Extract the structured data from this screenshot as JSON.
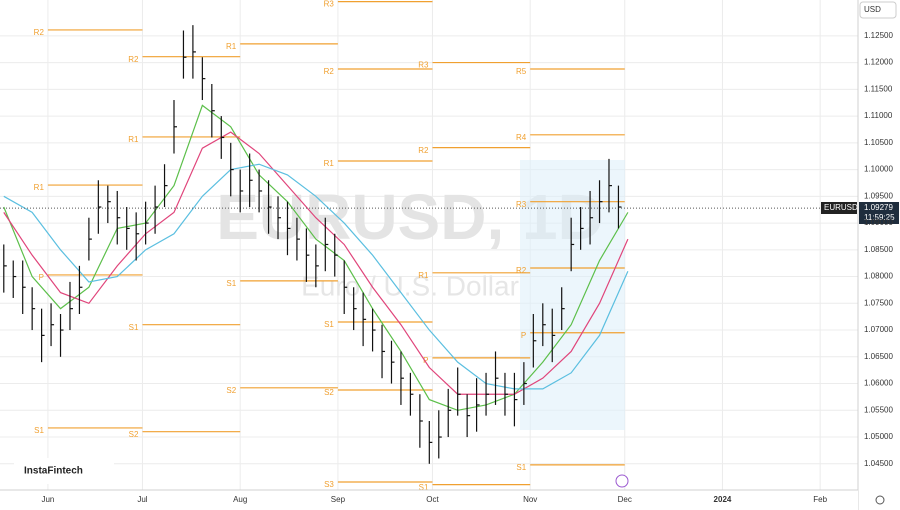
{
  "chart_data": {
    "type": "ohlc",
    "symbol": "EURUSD",
    "watermark": "EURUSD, 1D",
    "watermark_subtitle": "Euro / U.S. Dollar",
    "currency": "USD",
    "logo": "InstaFintech",
    "last_price": 1.09279,
    "countdown": "11:59:25",
    "bar_color": "#111111",
    "grid": true,
    "xlim": [
      -15.2,
      257
    ],
    "ylim": [
      1.0401,
      1.1317
    ],
    "xticks": [
      {
        "value": 0,
        "label": "Jun"
      },
      {
        "value": 30,
        "label": "Jul"
      },
      {
        "value": 61,
        "label": "Aug"
      },
      {
        "value": 92,
        "label": "Sep"
      },
      {
        "value": 122,
        "label": "Oct"
      },
      {
        "value": 153,
        "label": "Nov"
      },
      {
        "value": 183,
        "label": "Dec"
      },
      {
        "value": 214,
        "label": "2024"
      },
      {
        "value": 245,
        "label": "Feb"
      }
    ],
    "yticks": [
      {
        "value": 1.045,
        "label": "1.04500"
      },
      {
        "value": 1.05,
        "label": "1.05000"
      },
      {
        "value": 1.055,
        "label": "1.05500"
      },
      {
        "value": 1.06,
        "label": "1.06000"
      },
      {
        "value": 1.065,
        "label": "1.06500"
      },
      {
        "value": 1.07,
        "label": "1.07000"
      },
      {
        "value": 1.075,
        "label": "1.07500"
      },
      {
        "value": 1.08,
        "label": "1.08000"
      },
      {
        "value": 1.085,
        "label": "1.08500"
      },
      {
        "value": 1.09,
        "label": "1.09000"
      },
      {
        "value": 1.095,
        "label": "1.09500"
      },
      {
        "value": 1.1,
        "label": "1.10000"
      },
      {
        "value": 1.105,
        "label": "1.10500"
      },
      {
        "value": 1.11,
        "label": "1.11000"
      },
      {
        "value": 1.115,
        "label": "1.11500"
      },
      {
        "value": 1.12,
        "label": "1.12000"
      },
      {
        "value": 1.125,
        "label": "1.12500"
      }
    ],
    "x": [
      -14,
      -11,
      -8,
      -5,
      -2,
      1,
      4,
      7,
      10,
      13,
      16,
      19,
      22,
      25,
      28,
      31,
      34,
      37,
      40,
      43,
      46,
      49,
      52,
      55,
      58,
      61,
      64,
      67,
      70,
      73,
      76,
      79,
      82,
      85,
      88,
      91,
      94,
      97,
      100,
      103,
      106,
      109,
      112,
      115,
      118,
      121,
      124,
      127,
      130,
      133,
      136,
      139,
      142,
      145,
      148,
      151,
      154,
      157,
      160,
      163,
      166,
      169,
      172,
      175,
      178,
      181
    ],
    "high": [
      1.086,
      1.083,
      1.083,
      1.078,
      1.074,
      1.075,
      1.073,
      1.079,
      1.082,
      1.091,
      1.098,
      1.097,
      1.096,
      1.093,
      1.092,
      1.094,
      1.097,
      1.101,
      1.113,
      1.126,
      1.127,
      1.121,
      1.116,
      1.11,
      1.105,
      1.1,
      1.103,
      1.1,
      1.098,
      1.095,
      1.094,
      1.091,
      1.089,
      1.086,
      1.091,
      1.088,
      1.083,
      1.078,
      1.077,
      1.074,
      1.071,
      1.068,
      1.066,
      1.062,
      1.058,
      1.053,
      1.055,
      1.059,
      1.063,
      1.058,
      1.061,
      1.062,
      1.066,
      1.062,
      1.062,
      1.064,
      1.073,
      1.075,
      1.074,
      1.078,
      1.091,
      1.093,
      1.096,
      1.098,
      1.102,
      1.097
    ],
    "low": [
      1.077,
      1.076,
      1.073,
      1.07,
      1.064,
      1.067,
      1.065,
      1.07,
      1.073,
      1.083,
      1.088,
      1.09,
      1.086,
      1.085,
      1.083,
      1.086,
      1.088,
      1.093,
      1.103,
      1.117,
      1.117,
      1.113,
      1.106,
      1.102,
      1.095,
      1.092,
      1.093,
      1.092,
      1.088,
      1.087,
      1.084,
      1.083,
      1.079,
      1.078,
      1.081,
      1.08,
      1.073,
      1.07,
      1.067,
      1.066,
      1.061,
      1.06,
      1.056,
      1.054,
      1.048,
      1.045,
      1.046,
      1.05,
      1.054,
      1.05,
      1.051,
      1.054,
      1.056,
      1.054,
      1.052,
      1.056,
      1.063,
      1.067,
      1.064,
      1.07,
      1.081,
      1.085,
      1.086,
      1.09,
      1.092,
      1.089
    ],
    "close": [
      1.082,
      1.08,
      1.078,
      1.074,
      1.069,
      1.071,
      1.07,
      1.074,
      1.078,
      1.087,
      1.093,
      1.094,
      1.091,
      1.089,
      1.088,
      1.09,
      1.093,
      1.097,
      1.108,
      1.121,
      1.122,
      1.117,
      1.111,
      1.106,
      1.1,
      1.096,
      1.098,
      1.096,
      1.093,
      1.091,
      1.089,
      1.087,
      1.084,
      1.082,
      1.086,
      1.084,
      1.078,
      1.074,
      1.072,
      1.07,
      1.066,
      1.064,
      1.061,
      1.058,
      1.053,
      1.049,
      1.05,
      1.055,
      1.058,
      1.054,
      1.056,
      1.058,
      1.061,
      1.058,
      1.057,
      1.06,
      1.068,
      1.071,
      1.069,
      1.074,
      1.086,
      1.089,
      1.091,
      1.094,
      1.097,
      1.093
    ],
    "ma_x": [
      -14,
      -5,
      4,
      13,
      22,
      31,
      40,
      49,
      58,
      67,
      76,
      85,
      94,
      103,
      112,
      121,
      130,
      139,
      148,
      157,
      166,
      175,
      184
    ],
    "moving_averages": [
      {
        "color": "#5cbf4a",
        "values": [
          1.093,
          1.08,
          1.074,
          1.078,
          1.089,
          1.09,
          1.097,
          1.112,
          1.108,
          1.099,
          1.094,
          1.087,
          1.083,
          1.074,
          1.066,
          1.057,
          1.055,
          1.056,
          1.058,
          1.064,
          1.071,
          1.083,
          1.092
        ]
      },
      {
        "color": "#e0457b",
        "values": [
          1.092,
          1.084,
          1.077,
          1.075,
          1.082,
          1.088,
          1.092,
          1.104,
          1.107,
          1.103,
          1.097,
          1.091,
          1.086,
          1.078,
          1.071,
          1.063,
          1.058,
          1.058,
          1.058,
          1.061,
          1.066,
          1.075,
          1.087
        ]
      },
      {
        "color": "#5bbfe0",
        "values": [
          1.095,
          1.092,
          1.085,
          1.079,
          1.08,
          1.085,
          1.088,
          1.095,
          1.1,
          1.101,
          1.099,
          1.095,
          1.09,
          1.084,
          1.077,
          1.07,
          1.064,
          1.06,
          1.059,
          1.059,
          1.062,
          1.069,
          1.081
        ]
      }
    ],
    "pivot_color": "#f0a030",
    "pivot_periods": [
      {
        "start": 0,
        "end": 30,
        "levels": [
          {
            "label": "R2",
            "value": 1.1261
          },
          {
            "label": "R1",
            "value": 1.0971
          },
          {
            "label": "P",
            "value": 1.0803
          },
          {
            "label": "S1",
            "value": 1.0517
          }
        ]
      },
      {
        "start": 30,
        "end": 61,
        "levels": [
          {
            "label": "R2",
            "value": 1.1211
          },
          {
            "label": "R1",
            "value": 1.1061
          },
          {
            "label": "S1",
            "value": 1.071
          },
          {
            "label": "S2",
            "value": 1.051
          }
        ]
      },
      {
        "start": 61,
        "end": 92,
        "levels": [
          {
            "label": "R1",
            "value": 1.1235
          },
          {
            "label": "S1",
            "value": 1.0792
          },
          {
            "label": "S2",
            "value": 1.0592
          }
        ]
      },
      {
        "start": 92,
        "end": 122,
        "levels": [
          {
            "label": "R3",
            "value": 1.1314
          },
          {
            "label": "R2",
            "value": 1.1188
          },
          {
            "label": "R1",
            "value": 1.1016
          },
          {
            "label": "S1",
            "value": 1.0715
          },
          {
            "label": "S2",
            "value": 1.0588
          },
          {
            "label": "S3",
            "value": 1.0416
          }
        ]
      },
      {
        "start": 122,
        "end": 153,
        "levels": [
          {
            "label": "R3",
            "value": 1.12
          },
          {
            "label": "R2",
            "value": 1.1041
          },
          {
            "label": "R1",
            "value": 1.0807
          },
          {
            "label": "P",
            "value": 1.0648
          },
          {
            "label": "S1",
            "value": 1.0411
          }
        ]
      },
      {
        "start": 153,
        "end": 183,
        "levels": [
          {
            "label": "R5",
            "value": 1.1188
          },
          {
            "label": "R4",
            "value": 1.1065
          },
          {
            "label": "R3",
            "value": 1.094
          },
          {
            "label": "R2",
            "value": 1.0816
          },
          {
            "label": "P",
            "value": 1.0695
          },
          {
            "label": "S1",
            "value": 1.0448
          }
        ]
      }
    ]
  }
}
